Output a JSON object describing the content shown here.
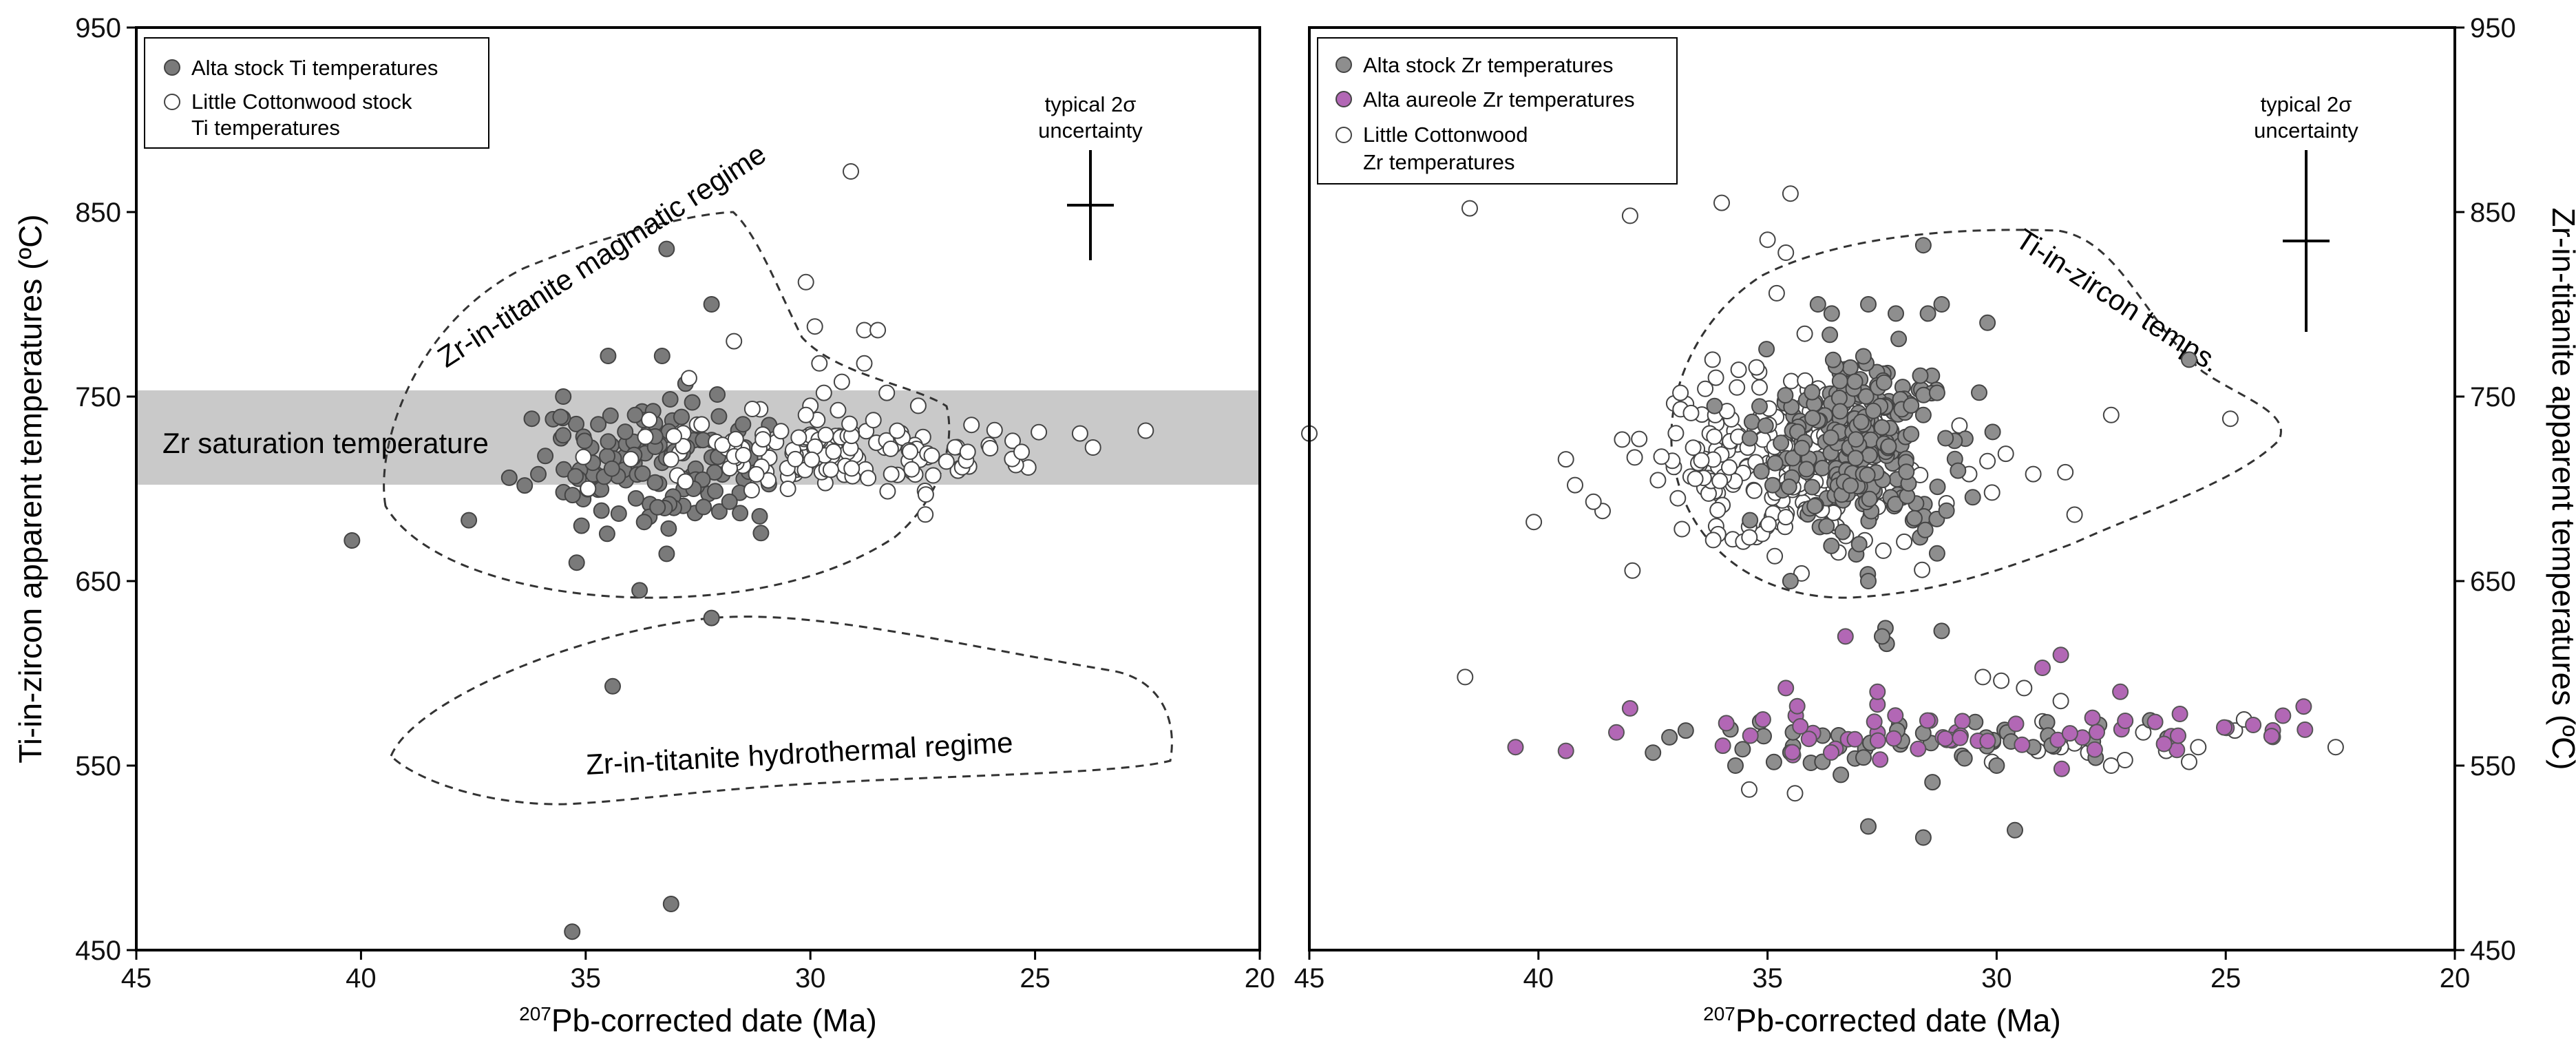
{
  "chart_data": [
    {
      "type": "scatter",
      "panel": "left",
      "xlabel_sup": "207",
      "xlabel": "Pb-corrected date (Ma)",
      "ylabel": "Ti-in-zircon apparent temperatures (ºC)",
      "xlim": [
        45,
        20
      ],
      "ylim": [
        450,
        950
      ],
      "xticks": [
        "45",
        "40",
        "35",
        "30",
        "25",
        "20"
      ],
      "yticks": [
        "950",
        "850",
        "750",
        "650",
        "550",
        "450"
      ],
      "band": {
        "label": "Zr saturation temperature",
        "range": [
          700,
          750
        ]
      },
      "legend": [
        "Alta stock Ti temperatures",
        "Little Cottonwood stock",
        "Ti temperatures"
      ],
      "annotations": {
        "magmatic": "Zr-in-titanite magmatic regime",
        "hydrothermal": "Zr-in-titanite hydrothermal regime",
        "uncertainty_line1": "typical 2σ",
        "uncertainty_line2": "uncertainty"
      },
      "series": [
        {
          "name": "Alta stock Ti temperatures",
          "color": "#7a7a7a"
        },
        {
          "name": "Little Cottonwood stock Ti temperatures",
          "color": "#ffffff"
        }
      ]
    },
    {
      "type": "scatter",
      "panel": "right",
      "xlabel_sup": "207",
      "xlabel": "Pb-corrected date (Ma)",
      "ylabel": "Zr-in-titanite apparent temperatures (ºC)",
      "xlim": [
        45,
        20
      ],
      "ylim": [
        450,
        950
      ],
      "xticks": [
        "45",
        "40",
        "35",
        "30",
        "25",
        "20"
      ],
      "yticks": [
        "950",
        "850",
        "750",
        "650",
        "550",
        "450"
      ],
      "legend": [
        "Alta stock Zr temperatures",
        "Alta aureole Zr temperatures",
        "Little Cottonwood",
        "Zr temperatures"
      ],
      "annotations": {
        "titemps": "Ti-in-zircon temps.",
        "uncertainty_line1": "typical 2σ",
        "uncertainty_line2": "uncertainty"
      },
      "series": [
        {
          "name": "Alta stock Zr temperatures",
          "color": "#8e8e8e"
        },
        {
          "name": "Alta aureole Zr temperatures",
          "color": "#b267b5"
        },
        {
          "name": "Little Cottonwood Zr temperatures",
          "color": "#ffffff"
        }
      ]
    }
  ]
}
